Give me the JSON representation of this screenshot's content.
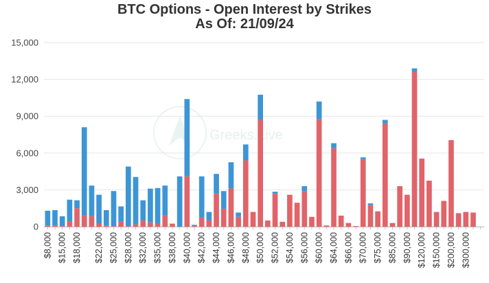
{
  "chart_data": {
    "type": "bar",
    "stacked": true,
    "title": "BTC Options - Open Interest by Strikes",
    "subtitle": "As Of: 21/09/24",
    "xlabel": "",
    "ylabel": "",
    "ylim": [
      0,
      15000
    ],
    "yticks": [
      0,
      3000,
      6000,
      9000,
      12000,
      15000
    ],
    "ytick_labels": [
      "0",
      "3,000",
      "6,000",
      "9,000",
      "12,000",
      "15,000"
    ],
    "grid": true,
    "legend": "none",
    "watermark": "Greeks.Live",
    "colors": {
      "red": "#e06469",
      "blue": "#3d95d5"
    },
    "labeled_categories": [
      "$8,000",
      "$15,000",
      "$18,000",
      "$22,000",
      "$25,000",
      "$28,000",
      "$32,000",
      "$35,000",
      "$38,000",
      "$40,000",
      "$42,000",
      "$44,000",
      "$46,000",
      "$48,000",
      "$50,000",
      "$52,000",
      "$54,000",
      "$56,000",
      "$60,000",
      "$64,000",
      "$66,000",
      "$70,000",
      "$75,000",
      "$85,000",
      "$90,000",
      "$120,000",
      "$150,000",
      "$200,000",
      "$300,000"
    ],
    "categories": [
      "$8,000",
      "",
      "$15,000",
      "",
      "$18,000",
      "",
      "",
      "$22,000",
      "",
      "$25,000",
      "",
      "$28,000",
      "",
      "$32,000",
      "",
      "$35,000",
      "",
      "$38,000",
      "",
      "$40,000",
      "",
      "$42,000",
      "",
      "$44,000",
      "",
      "$46,000",
      "",
      "$48,000",
      "",
      "$50,000",
      "",
      "$52,000",
      "",
      "$54,000",
      "",
      "$56,000",
      "",
      "$60,000",
      "",
      "$64,000",
      "",
      "$66,000",
      "",
      "$70,000",
      "",
      "$75,000",
      "",
      "$85,000",
      "",
      "$90,000",
      "",
      "$120,000",
      "",
      "$150,000",
      "",
      "$200,000",
      "",
      "$300,000",
      "",
      ""
    ],
    "series": [
      {
        "color": "red",
        "values": [
          100,
          100,
          50,
          450,
          1500,
          900,
          850,
          250,
          100,
          50,
          400,
          50,
          200,
          500,
          350,
          250,
          900,
          250,
          0,
          4100,
          50,
          750,
          500,
          2700,
          1450,
          3100,
          800,
          5400,
          1200,
          8700,
          500,
          2700,
          400,
          2600,
          1950,
          2900,
          800,
          8750,
          100,
          6400,
          900,
          300,
          50,
          5500,
          1750,
          1250,
          8400,
          300,
          3300,
          2600,
          12600,
          5550,
          3750,
          1200,
          2100,
          7050,
          1100,
          1200,
          1150,
          0
        ]
      },
      {
        "color": "blue",
        "values": [
          1200,
          1250,
          800,
          1750,
          650,
          7200,
          2500,
          2350,
          1250,
          2850,
          1250,
          4850,
          3850,
          1650,
          2750,
          2900,
          2450,
          0,
          4100,
          6300,
          100,
          3350,
          700,
          1600,
          1450,
          2150,
          350,
          1300,
          0,
          2050,
          0,
          150,
          0,
          0,
          0,
          400,
          0,
          1450,
          0,
          400,
          0,
          0,
          0,
          150,
          150,
          0,
          300,
          0,
          0,
          0,
          300,
          0,
          0,
          0,
          0,
          0,
          0,
          0,
          0,
          0
        ]
      }
    ]
  }
}
